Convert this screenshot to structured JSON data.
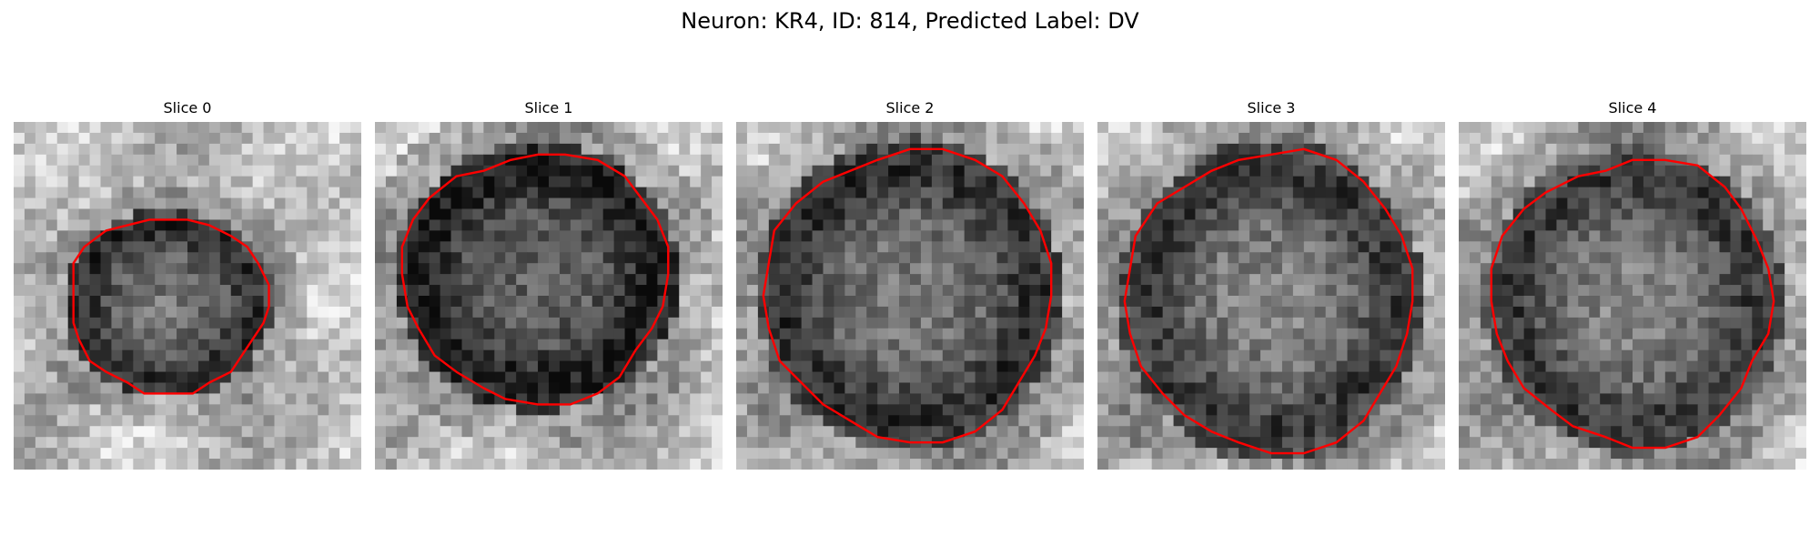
{
  "figure": {
    "title": "Neuron: KR4, ID: 814, Predicted Label: DV",
    "outline_color": "#ff0000",
    "slices": [
      {
        "label": "Slice 0"
      },
      {
        "label": "Slice 1"
      },
      {
        "label": "Slice 2"
      },
      {
        "label": "Slice 3"
      },
      {
        "label": "Slice 4"
      }
    ]
  }
}
